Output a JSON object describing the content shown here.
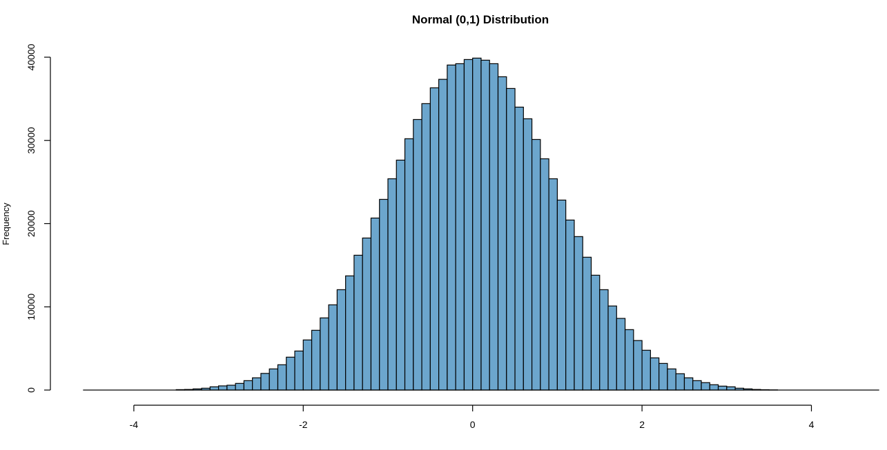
{
  "chart_data": {
    "type": "bar",
    "subtype": "histogram",
    "title": "Normal (0,1) Distribution",
    "xlabel": "",
    "ylabel": "Frequency",
    "bin_width": 0.1,
    "xlim": [
      -4.6,
      4.8
    ],
    "ylim": [
      0,
      40000
    ],
    "x_ticks": [
      -4,
      -2,
      0,
      2,
      4
    ],
    "x_tick_labels": [
      "-4",
      "-2",
      "0",
      "2",
      "4"
    ],
    "y_ticks": [
      0,
      10000,
      20000,
      30000,
      40000
    ],
    "y_tick_labels": [
      "0",
      "10000",
      "20000",
      "30000",
      "40000"
    ],
    "grid": false,
    "legend": null,
    "bar_fill": "#6CA6CD",
    "bar_stroke": "#000000",
    "bins": [
      {
        "x0": -3.5,
        "count": 50
      },
      {
        "x0": -3.4,
        "count": 70
      },
      {
        "x0": -3.3,
        "count": 140
      },
      {
        "x0": -3.2,
        "count": 220
      },
      {
        "x0": -3.1,
        "count": 390
      },
      {
        "x0": -3.0,
        "count": 500
      },
      {
        "x0": -2.9,
        "count": 580
      },
      {
        "x0": -2.8,
        "count": 800
      },
      {
        "x0": -2.7,
        "count": 1130
      },
      {
        "x0": -2.6,
        "count": 1470
      },
      {
        "x0": -2.5,
        "count": 2000
      },
      {
        "x0": -2.4,
        "count": 2540
      },
      {
        "x0": -2.3,
        "count": 3040
      },
      {
        "x0": -2.2,
        "count": 3950
      },
      {
        "x0": -2.1,
        "count": 4690
      },
      {
        "x0": -2.0,
        "count": 6020
      },
      {
        "x0": -1.9,
        "count": 7180
      },
      {
        "x0": -1.8,
        "count": 8670
      },
      {
        "x0": -1.7,
        "count": 10240
      },
      {
        "x0": -1.6,
        "count": 12060
      },
      {
        "x0": -1.5,
        "count": 13720
      },
      {
        "x0": -1.4,
        "count": 16200
      },
      {
        "x0": -1.3,
        "count": 18270
      },
      {
        "x0": -1.2,
        "count": 20670
      },
      {
        "x0": -1.1,
        "count": 22910
      },
      {
        "x0": -1.0,
        "count": 25390
      },
      {
        "x0": -0.9,
        "count": 27630
      },
      {
        "x0": -0.8,
        "count": 30200
      },
      {
        "x0": -0.7,
        "count": 32510
      },
      {
        "x0": -0.6,
        "count": 34420
      },
      {
        "x0": -0.5,
        "count": 36320
      },
      {
        "x0": -0.4,
        "count": 37340
      },
      {
        "x0": -0.3,
        "count": 39060
      },
      {
        "x0": -0.2,
        "count": 39220
      },
      {
        "x0": -0.1,
        "count": 39720
      },
      {
        "x0": 0.0,
        "count": 39890
      },
      {
        "x0": 0.1,
        "count": 39640
      },
      {
        "x0": 0.2,
        "count": 39220
      },
      {
        "x0": 0.3,
        "count": 37650
      },
      {
        "x0": 0.4,
        "count": 36240
      },
      {
        "x0": 0.5,
        "count": 34000
      },
      {
        "x0": 0.6,
        "count": 32600
      },
      {
        "x0": 0.7,
        "count": 30110
      },
      {
        "x0": 0.8,
        "count": 27790
      },
      {
        "x0": 0.9,
        "count": 25390
      },
      {
        "x0": 1.0,
        "count": 22830
      },
      {
        "x0": 1.1,
        "count": 20430
      },
      {
        "x0": 1.2,
        "count": 18440
      },
      {
        "x0": 1.3,
        "count": 15960
      },
      {
        "x0": 1.4,
        "count": 13800
      },
      {
        "x0": 1.5,
        "count": 12060
      },
      {
        "x0": 1.6,
        "count": 10100
      },
      {
        "x0": 1.7,
        "count": 8610
      },
      {
        "x0": 1.8,
        "count": 7260
      },
      {
        "x0": 1.9,
        "count": 5950
      },
      {
        "x0": 2.0,
        "count": 4780
      },
      {
        "x0": 2.1,
        "count": 3870
      },
      {
        "x0": 2.2,
        "count": 3200
      },
      {
        "x0": 2.3,
        "count": 2540
      },
      {
        "x0": 2.4,
        "count": 1960
      },
      {
        "x0": 2.5,
        "count": 1470
      },
      {
        "x0": 2.6,
        "count": 1130
      },
      {
        "x0": 2.7,
        "count": 890
      },
      {
        "x0": 2.8,
        "count": 640
      },
      {
        "x0": 2.9,
        "count": 470
      },
      {
        "x0": 3.0,
        "count": 390
      },
      {
        "x0": 3.1,
        "count": 220
      },
      {
        "x0": 3.2,
        "count": 140
      },
      {
        "x0": 3.3,
        "count": 70
      },
      {
        "x0": 3.4,
        "count": 40
      },
      {
        "x0": 3.5,
        "count": 20
      }
    ]
  }
}
